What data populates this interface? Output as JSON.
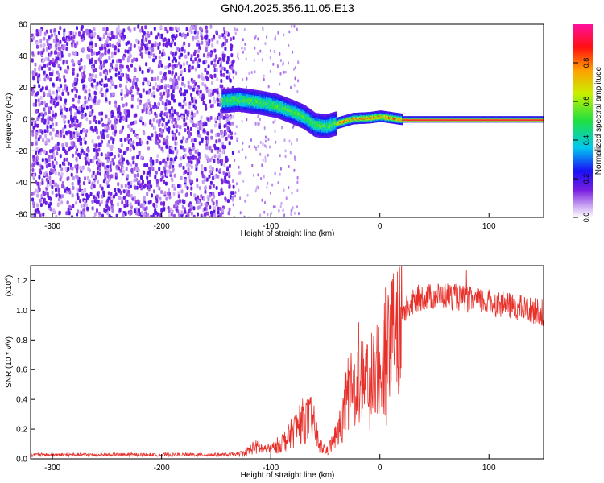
{
  "title": "GN04.2025.356.11.05.E13",
  "colors": {
    "snr_line": "#e8302a",
    "plot_border": "#000000",
    "background": "#ffffff"
  },
  "chart_data": [
    {
      "type": "heatmap",
      "ylabel": "Frequency (Hz)",
      "xlabel": "Height of straight line (km)",
      "xlim": [
        -320,
        150
      ],
      "ylim": [
        -62,
        60
      ],
      "x_ticks": [
        "-300",
        "-200",
        "-100",
        "0",
        "100"
      ],
      "y_ticks": [
        "60",
        "40",
        "20",
        "0",
        "-20",
        "-40",
        "-60"
      ],
      "grid": false,
      "colorbar": {
        "label": "Normalized spectral amplitude",
        "range": [
          0,
          1
        ],
        "ticks": [
          "0.0",
          "0.2",
          "0.4",
          "0.6",
          "0.8"
        ],
        "colormap": "rainbow (purple-blue-cyan-green-yellow-red-magenta)"
      },
      "noise_region": {
        "x_range": [
          -320,
          -135
        ],
        "note_level": 0.15
      },
      "ridge": [
        {
          "x": -145,
          "f": 12
        },
        {
          "x": -130,
          "f": 13
        },
        {
          "x": -110,
          "f": 11
        },
        {
          "x": -95,
          "f": 9
        },
        {
          "x": -80,
          "f": 5
        },
        {
          "x": -70,
          "f": 2
        },
        {
          "x": -60,
          "f": -3
        },
        {
          "x": -50,
          "f": -4
        },
        {
          "x": -40,
          "f": -2
        },
        {
          "x": -25,
          "f": 1
        },
        {
          "x": -10,
          "f": 1.5
        },
        {
          "x": 0,
          "f": 2.5
        },
        {
          "x": 20,
          "f": 0.5
        },
        {
          "x": 60,
          "f": 0.5
        },
        {
          "x": 150,
          "f": 0.5
        }
      ]
    },
    {
      "type": "line",
      "ylabel": "SNR (10 * v/v)",
      "xlabel": "Height of straight line (km)",
      "exponent_label": "(x10",
      "exponent_sup": "4",
      "exponent_close": ")",
      "xlim": [
        -320,
        150
      ],
      "ylim": [
        0,
        1.3
      ],
      "x_ticks": [
        "-300",
        "-200",
        "-100",
        "0",
        "100"
      ],
      "y_ticks": [
        "0.0",
        "0.2",
        "0.4",
        "0.6",
        "0.8",
        "1.0",
        "1.2"
      ],
      "grid": false,
      "series": [
        {
          "envelope": [
            {
              "x": -320,
              "y": 0.03
            },
            {
              "x": -140,
              "y": 0.03
            },
            {
              "x": -125,
              "y": 0.04
            },
            {
              "x": -115,
              "y": 0.09
            },
            {
              "x": -100,
              "y": 0.07
            },
            {
              "x": -85,
              "y": 0.15
            },
            {
              "x": -72,
              "y": 0.28
            },
            {
              "x": -62,
              "y": 0.3
            },
            {
              "x": -55,
              "y": 0.1
            },
            {
              "x": -48,
              "y": 0.06
            },
            {
              "x": -38,
              "y": 0.2
            },
            {
              "x": -25,
              "y": 0.62
            },
            {
              "x": -15,
              "y": 0.72
            },
            {
              "x": -10,
              "y": 0.55
            },
            {
              "x": 0,
              "y": 0.75
            },
            {
              "x": 10,
              "y": 0.85
            },
            {
              "x": 20,
              "y": 1.0
            },
            {
              "x": 35,
              "y": 1.1
            },
            {
              "x": 60,
              "y": 1.12
            },
            {
              "x": 80,
              "y": 1.09
            },
            {
              "x": 110,
              "y": 1.06
            },
            {
              "x": 150,
              "y": 1.0
            }
          ]
        }
      ]
    }
  ]
}
